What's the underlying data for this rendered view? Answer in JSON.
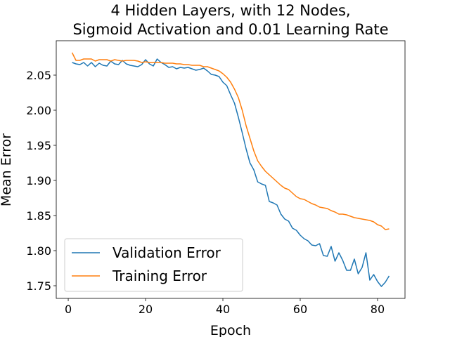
{
  "chart_data": {
    "type": "line",
    "title": [
      "4 Hidden Layers, with 12 Nodes,",
      "Sigmoid Activation and 0.01 Learning Rate"
    ],
    "x_label": "Epoch",
    "y_label": "Mean Error",
    "x": [
      1,
      2,
      3,
      4,
      5,
      6,
      7,
      8,
      9,
      10,
      11,
      12,
      13,
      14,
      15,
      16,
      17,
      18,
      19,
      20,
      21,
      22,
      23,
      24,
      25,
      26,
      27,
      28,
      29,
      30,
      31,
      32,
      33,
      34,
      35,
      36,
      37,
      38,
      39,
      40,
      41,
      42,
      43,
      44,
      45,
      46,
      47,
      48,
      49,
      50,
      51,
      52,
      53,
      54,
      55,
      56,
      57,
      58,
      59,
      60,
      61,
      62,
      63,
      64,
      65,
      66,
      67,
      68,
      69,
      70,
      71,
      72,
      73,
      74,
      75,
      76,
      77,
      78,
      79,
      80,
      81,
      82,
      83
    ],
    "series": [
      {
        "name": "Validation Error",
        "color": "#1f77b4",
        "values": [
          2.068,
          2.066,
          2.065,
          2.068,
          2.063,
          2.068,
          2.062,
          2.067,
          2.064,
          2.063,
          2.07,
          2.066,
          2.065,
          2.071,
          2.066,
          2.064,
          2.063,
          2.062,
          2.065,
          2.072,
          2.066,
          2.063,
          2.073,
          2.068,
          2.065,
          2.061,
          2.062,
          2.059,
          2.061,
          2.06,
          2.061,
          2.059,
          2.057,
          2.058,
          2.06,
          2.056,
          2.051,
          2.05,
          2.048,
          2.04,
          2.035,
          2.022,
          2.01,
          1.99,
          1.968,
          1.945,
          1.925,
          1.915,
          1.898,
          1.895,
          1.893,
          1.87,
          1.868,
          1.865,
          1.852,
          1.845,
          1.842,
          1.832,
          1.829,
          1.822,
          1.817,
          1.814,
          1.808,
          1.807,
          1.81,
          1.793,
          1.792,
          1.806,
          1.785,
          1.797,
          1.786,
          1.772,
          1.772,
          1.788,
          1.767,
          1.776,
          1.797,
          1.758,
          1.766,
          1.756,
          1.749,
          1.755,
          1.764
        ]
      },
      {
        "name": "Training Error",
        "color": "#ff7f0e",
        "values": [
          2.082,
          2.071,
          2.071,
          2.073,
          2.073,
          2.073,
          2.07,
          2.072,
          2.072,
          2.072,
          2.07,
          2.072,
          2.071,
          2.07,
          2.071,
          2.071,
          2.071,
          2.07,
          2.068,
          2.069,
          2.068,
          2.068,
          2.068,
          2.068,
          2.067,
          2.067,
          2.067,
          2.066,
          2.066,
          2.065,
          2.065,
          2.064,
          2.064,
          2.064,
          2.062,
          2.062,
          2.06,
          2.058,
          2.056,
          2.052,
          2.047,
          2.04,
          2.03,
          2.018,
          2.0,
          1.978,
          1.96,
          1.942,
          1.928,
          1.92,
          1.913,
          1.908,
          1.903,
          1.898,
          1.893,
          1.889,
          1.887,
          1.882,
          1.877,
          1.874,
          1.873,
          1.87,
          1.867,
          1.865,
          1.862,
          1.861,
          1.86,
          1.857,
          1.855,
          1.852,
          1.852,
          1.851,
          1.849,
          1.847,
          1.846,
          1.845,
          1.844,
          1.843,
          1.841,
          1.837,
          1.835,
          1.83,
          1.831
        ]
      }
    ],
    "xlim": [
      -3.1,
      87.1
    ],
    "ylim": [
      1.732,
      2.099
    ],
    "xticks": [
      0,
      20,
      40,
      60,
      80
    ],
    "yticks": [
      1.75,
      {
        "value": 1.8,
        "label": "1.80"
      },
      1.85,
      {
        "value": 1.9,
        "label": "1.90"
      },
      1.95,
      {
        "value": 2.0,
        "label": "2.00"
      },
      2.05
    ],
    "legend": "lower left",
    "grid": false
  }
}
